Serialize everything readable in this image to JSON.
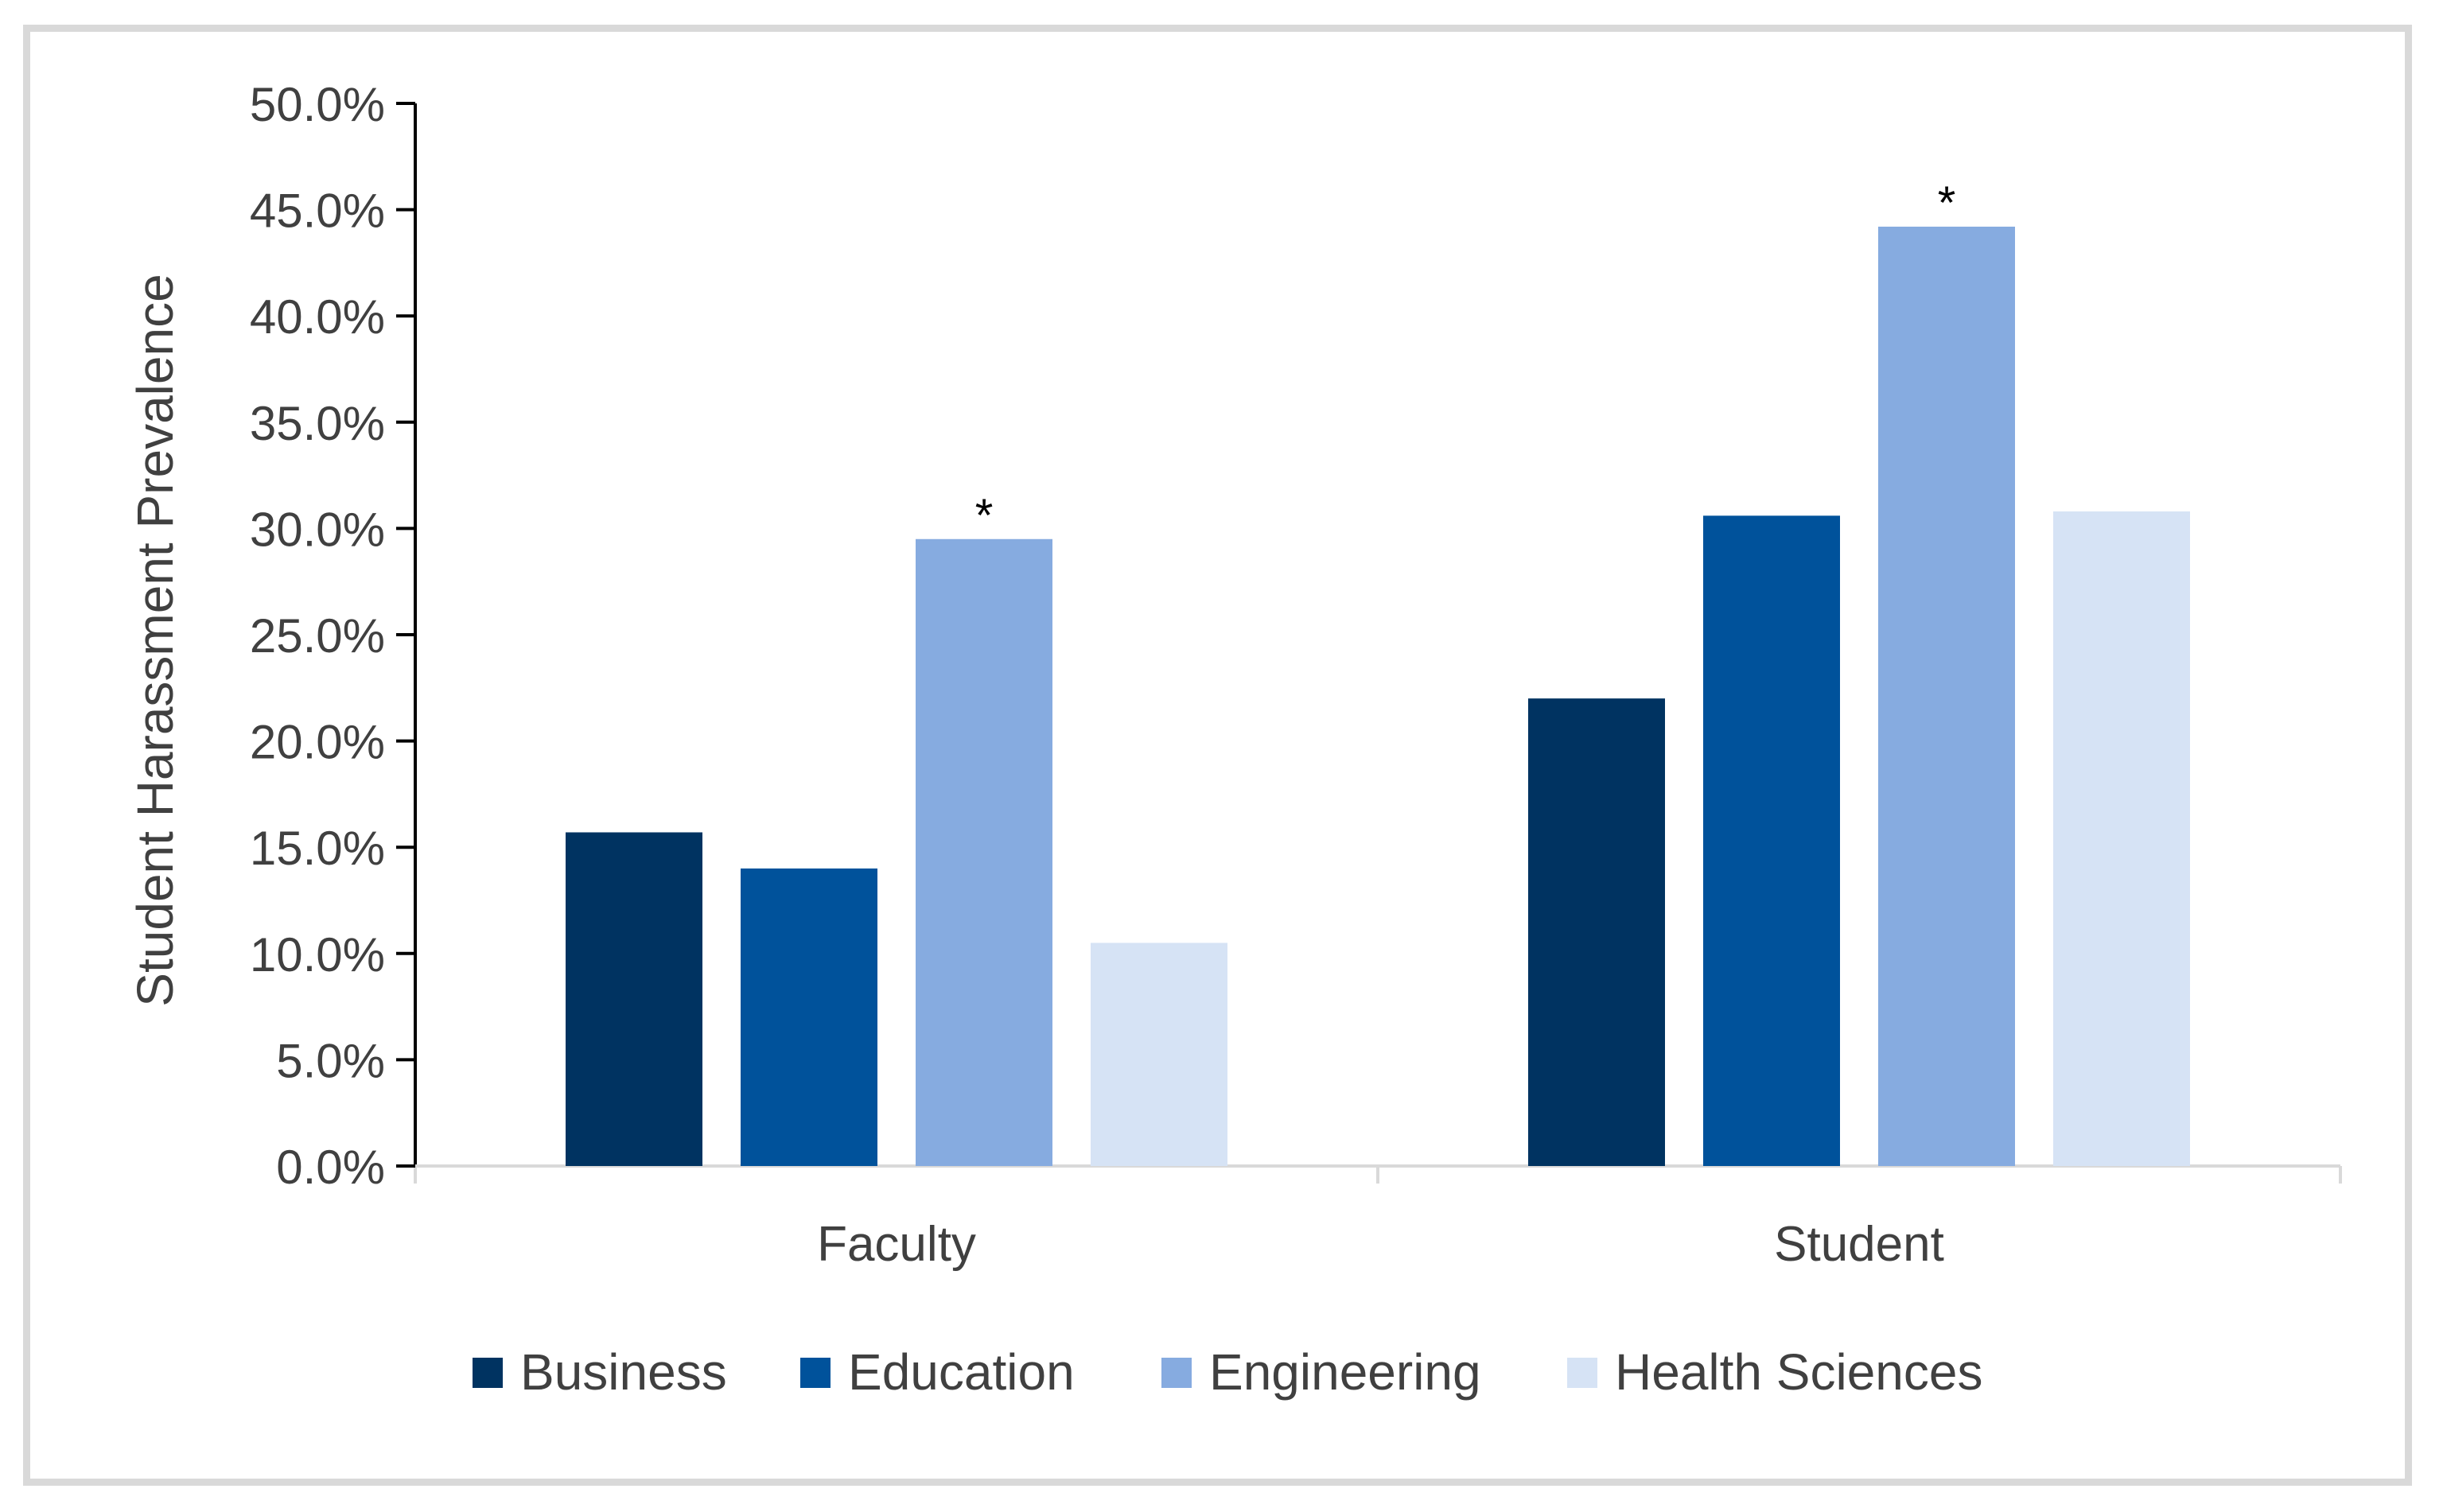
{
  "chart_data": {
    "type": "bar",
    "title": "",
    "xlabel": "",
    "ylabel": "Student Harassment Prevalence",
    "ylim": [
      0,
      50
    ],
    "ytick_step": 5,
    "ytick_labels": [
      "0.0%",
      "5.0%",
      "10.0%",
      "15.0%",
      "20.0%",
      "25.0%",
      "30.0%",
      "35.0%",
      "40.0%",
      "45.0%",
      "50.0%"
    ],
    "categories": [
      "Faculty",
      "Student"
    ],
    "series": [
      {
        "name": "Business",
        "color": "#003361",
        "values": [
          15.7,
          22.0
        ]
      },
      {
        "name": "Education",
        "color": "#00529b",
        "values": [
          14.0,
          30.6
        ]
      },
      {
        "name": "Engineering",
        "color": "#86abe0",
        "values": [
          29.5,
          44.2
        ]
      },
      {
        "name": "Health Sciences",
        "color": "#d6e3f5",
        "values": [
          10.5,
          30.8
        ]
      }
    ],
    "annotations": [
      {
        "category": "Faculty",
        "series": "Engineering",
        "text": "*"
      },
      {
        "category": "Student",
        "series": "Engineering",
        "text": "*"
      }
    ],
    "legend_position": "bottom",
    "grid": false
  }
}
